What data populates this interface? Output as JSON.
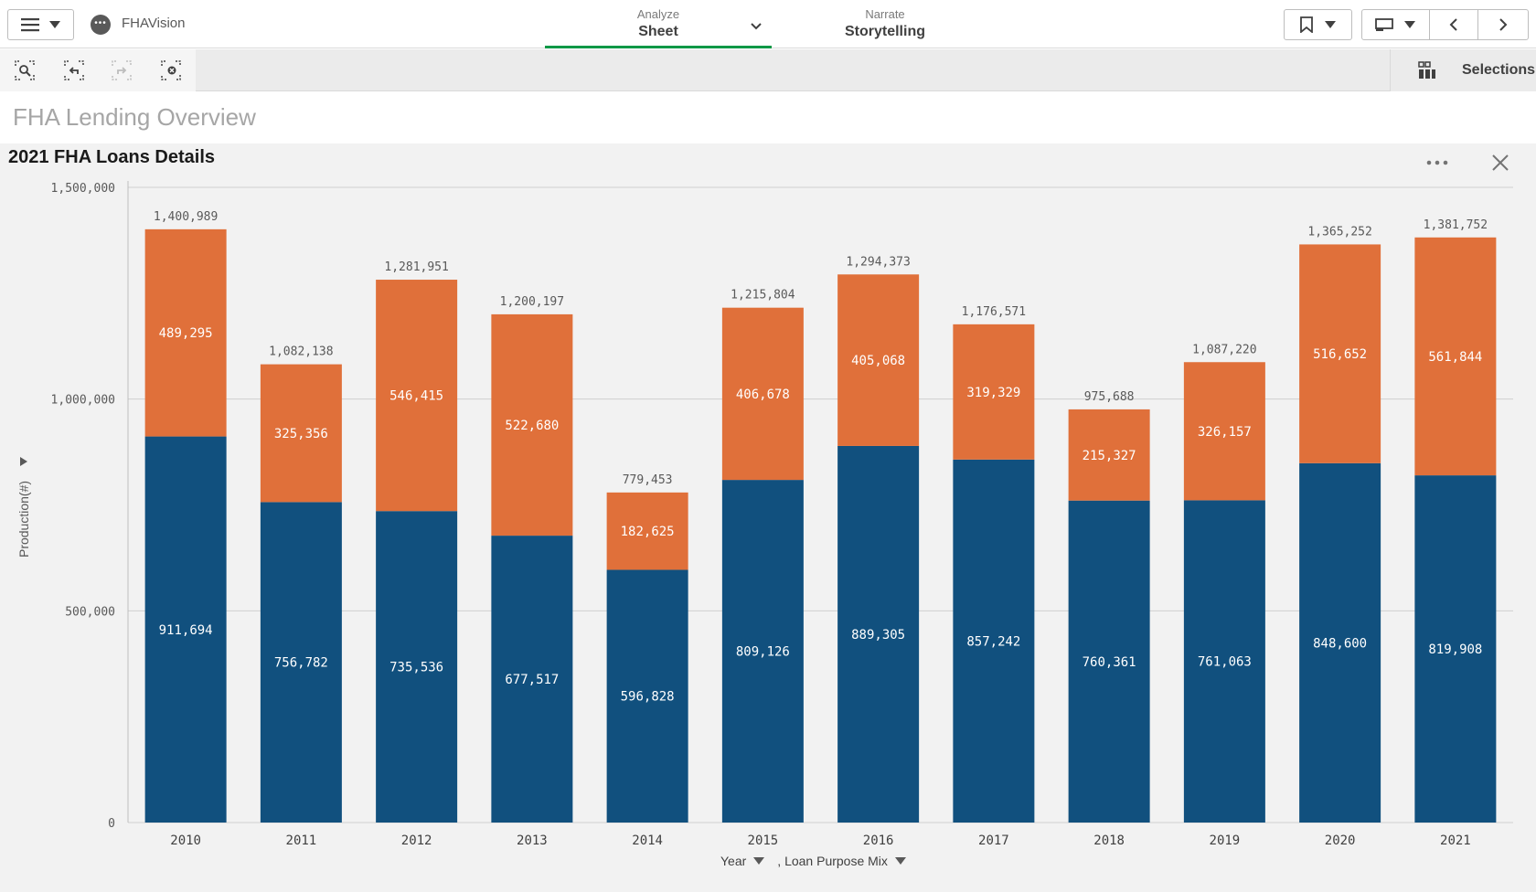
{
  "app": {
    "name": "FHAVision"
  },
  "tabs": {
    "analyze": {
      "kicker": "Analyze",
      "title": "Sheet"
    },
    "narrate": {
      "kicker": "Narrate",
      "title": "Storytelling"
    }
  },
  "toolbar": {
    "selections_label": "Selections"
  },
  "sheet": {
    "title": "FHA Lending Overview"
  },
  "colors": {
    "series_bottom": "#11507e",
    "series_top": "#e0703a",
    "accent_tab": "#009845"
  },
  "chart": {
    "title": "2021 FHA Loans Details",
    "y_axis_title": "Production(#)",
    "x_dim_1": "Year",
    "x_dim_2": ", Loan Purpose Mix"
  },
  "chart_data": {
    "type": "bar",
    "stacked": true,
    "categories": [
      "2010",
      "2011",
      "2012",
      "2013",
      "2014",
      "2015",
      "2016",
      "2017",
      "2018",
      "2019",
      "2020",
      "2021"
    ],
    "series": [
      {
        "color": "#11507e",
        "values": [
          911694,
          756782,
          735536,
          677517,
          596828,
          809126,
          889305,
          857242,
          760361,
          761063,
          848600,
          819908
        ]
      },
      {
        "color": "#e0703a",
        "values": [
          489295,
          325356,
          546415,
          522680,
          182625,
          406678,
          405068,
          319329,
          215327,
          326157,
          516652,
          561844
        ]
      }
    ],
    "totals": [
      1400989,
      1082138,
      1281951,
      1200197,
      779453,
      1215804,
      1294373,
      1176571,
      975688,
      1087220,
      1365252,
      1381752
    ],
    "yticks": [
      0,
      500000,
      1000000,
      1500000
    ],
    "ytick_labels": [
      "0",
      "500,000",
      "1,000,000",
      "1,500,000"
    ],
    "ylim": [
      0,
      1500000
    ],
    "grid": true,
    "ylabel": "Production(#)",
    "xlabel": "Year , Loan Purpose Mix"
  }
}
